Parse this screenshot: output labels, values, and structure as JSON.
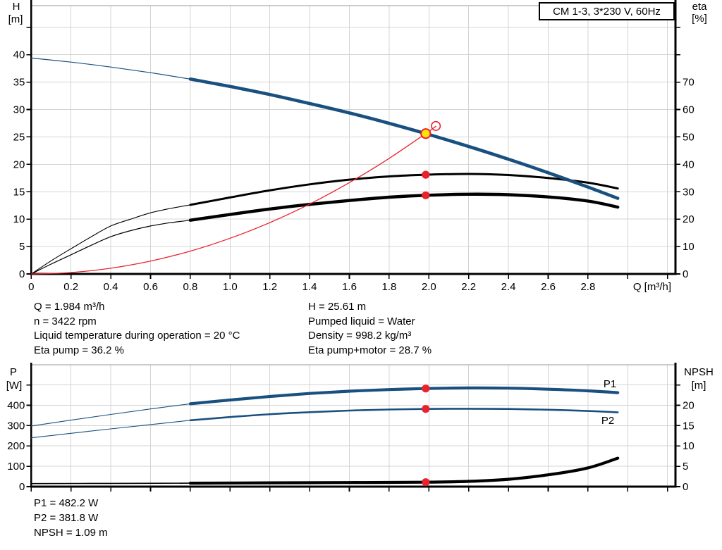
{
  "title_box": {
    "label": "CM 1-3, 3*230 V, 60Hz"
  },
  "colors": {
    "blue": "#1a5080",
    "red": "#e8232e",
    "yellow": "#ffe10a",
    "black": "#000000",
    "grid": "#d4d4d4",
    "axis": "#000000"
  },
  "operating_point_info": {
    "left": [
      "Q = 1.984 m³/h",
      "n = 3422 rpm",
      "Liquid temperature during operation = 20 °C",
      "Eta pump = 36.2 %"
    ],
    "right": [
      "H = 25.61 m",
      "Pumped liquid = Water",
      "Density = 998.2 kg/m³",
      "Eta pump+motor = 28.7 %"
    ]
  },
  "power_info": [
    "P1 = 482.2 W",
    "P2 = 381.8 W",
    "NPSH = 1.09 m"
  ],
  "chart_data": [
    {
      "id": "hq-eta-chart",
      "type": "line",
      "title": "Pump head and efficiency vs flow",
      "x": {
        "label": "Q [m³/h]",
        "min": 0,
        "max": 3.24,
        "ticks": [
          0,
          0.2,
          0.4,
          0.6,
          0.8,
          1,
          1.2,
          1.4,
          1.6,
          1.8,
          2,
          2.2,
          2.4,
          2.6,
          2.8,
          3,
          3.2
        ],
        "tick_labels": [
          "0",
          "0.2",
          "0.4",
          "0.6",
          "0.8",
          "1.0",
          "1.2",
          "1.4",
          "1.6",
          "1.8",
          "2.0",
          "2.2",
          "2.4",
          "2.6",
          "2.8",
          "",
          ""
        ],
        "px0": 44.3,
        "ppu": 282,
        "axis_y": 389,
        "plot_top": 8,
        "plot_right": 958,
        "axis_top": 0,
        "tick_label_y": 412
      },
      "left_axis": {
        "label": "H [m]",
        "min": 0,
        "max": 49,
        "ticks": [
          0,
          5,
          10,
          15,
          20,
          25,
          30,
          35,
          40,
          45
        ],
        "tick_labels": [
          "0",
          "5",
          "10",
          "15",
          "20",
          "25",
          "30",
          "35",
          "40",
          ""
        ],
        "ppu": 7.7825
      },
      "right_axis": {
        "label": "eta [%]",
        "min": 0,
        "max": 98,
        "ticks": [
          0,
          10,
          20,
          30,
          40,
          50,
          60,
          70,
          80,
          90
        ],
        "tick_labels": [
          "0",
          "10",
          "20",
          "30",
          "40",
          "50",
          "60",
          "70",
          "",
          ""
        ],
        "ppu": 3.8913
      },
      "titles": [
        {
          "text": "H",
          "x": 23,
          "y": 14
        },
        {
          "text": "[m]",
          "x": 22,
          "y": 32
        },
        {
          "text": "eta",
          "x": 992,
          "y": 14
        },
        {
          "text": "[%]",
          "x": 992,
          "y": 31
        },
        {
          "text": "Q [m³/h]",
          "x": 952,
          "y": 412,
          "anchor": "end"
        }
      ],
      "series": [
        {
          "name": "eta-pump-motor-curve-thin",
          "axis": "right",
          "color": "black",
          "width": 1.2,
          "points": [
            [
              0,
              0
            ],
            [
              0.1,
              3.6
            ],
            [
              0.2,
              7.0
            ],
            [
              0.3,
              10.4
            ],
            [
              0.4,
              13.6
            ],
            [
              0.5,
              15.8
            ],
            [
              0.6,
              17.5
            ],
            [
              0.7,
              18.7
            ],
            [
              0.8,
              19.6
            ]
          ]
        },
        {
          "name": "eta-pump-motor-curve",
          "axis": "right",
          "color": "black",
          "width": 4.4,
          "points": [
            [
              0.8,
              19.6
            ],
            [
              1.0,
              21.7
            ],
            [
              1.2,
              23.7
            ],
            [
              1.4,
              25.4
            ],
            [
              1.6,
              26.8
            ],
            [
              1.8,
              28.0
            ],
            [
              1.984,
              28.7
            ],
            [
              2.2,
              29.1
            ],
            [
              2.4,
              28.9
            ],
            [
              2.6,
              28.1
            ],
            [
              2.8,
              26.6
            ],
            [
              2.95,
              24.4
            ]
          ]
        },
        {
          "name": "eta-pump-curve-thin",
          "axis": "right",
          "color": "black",
          "width": 1.1,
          "points": [
            [
              0,
              0
            ],
            [
              0.1,
              4.8
            ],
            [
              0.2,
              9.2
            ],
            [
              0.3,
              13.5
            ],
            [
              0.4,
              17.5
            ],
            [
              0.5,
              20.0
            ],
            [
              0.6,
              22.3
            ],
            [
              0.7,
              23.9
            ],
            [
              0.8,
              25.2
            ]
          ]
        },
        {
          "name": "eta-pump-curve",
          "axis": "right",
          "color": "black",
          "width": 3,
          "points": [
            [
              0.8,
              25.2
            ],
            [
              1.0,
              27.9
            ],
            [
              1.2,
              30.5
            ],
            [
              1.4,
              32.7
            ],
            [
              1.6,
              34.4
            ],
            [
              1.8,
              35.6
            ],
            [
              1.984,
              36.2
            ],
            [
              2.2,
              36.5
            ],
            [
              2.4,
              36.1
            ],
            [
              2.6,
              35.0
            ],
            [
              2.8,
              33.3
            ],
            [
              2.95,
              31.2
            ]
          ]
        },
        {
          "name": "h-curve-thin",
          "axis": "left",
          "color": "blue",
          "width": 1.2,
          "points": [
            [
              0,
              39.4
            ],
            [
              0.2,
              38.65
            ],
            [
              0.4,
              37.75
            ],
            [
              0.6,
              36.72
            ],
            [
              0.8,
              35.55
            ]
          ]
        },
        {
          "name": "h-curve",
          "axis": "left",
          "color": "blue",
          "width": 4.6,
          "points": [
            [
              0.8,
              35.55
            ],
            [
              1.0,
              34.2
            ],
            [
              1.2,
              32.74
            ],
            [
              1.4,
              31.1
            ],
            [
              1.6,
              29.38
            ],
            [
              1.8,
              27.48
            ],
            [
              1.984,
              25.61
            ],
            [
              2.2,
              23.26
            ],
            [
              2.4,
              20.93
            ],
            [
              2.6,
              18.46
            ],
            [
              2.8,
              15.85
            ],
            [
              2.95,
              13.8
            ]
          ]
        },
        {
          "name": "system-curve",
          "axis": "left",
          "color": "red",
          "width": 1.3,
          "points": [
            [
              0,
              0
            ],
            [
              0.2,
              0.26
            ],
            [
              0.4,
              1.04
            ],
            [
              0.6,
              2.34
            ],
            [
              0.8,
              4.16
            ],
            [
              1.0,
              6.51
            ],
            [
              1.2,
              9.37
            ],
            [
              1.4,
              12.75
            ],
            [
              1.6,
              16.66
            ],
            [
              1.8,
              21.08
            ],
            [
              1.984,
              25.61
            ],
            [
              2.035,
              26.95
            ]
          ]
        }
      ],
      "annotations": [],
      "markers": [
        {
          "name": "eta-pump-duty-dot",
          "q": 1.984,
          "v": 36.2,
          "axis": "right",
          "r": 5.6,
          "fill": "red"
        },
        {
          "name": "eta-pump-motor-duty-dot",
          "q": 1.984,
          "v": 28.7,
          "axis": "right",
          "r": 5.6,
          "fill": "red"
        },
        {
          "name": "requested-duty-ring",
          "q": 2.035,
          "v": 27.0,
          "axis": "left",
          "r": 6.2,
          "stroke": "red",
          "sw": 1.6
        },
        {
          "name": "duty-point-marker",
          "q": 1.984,
          "v": 25.61,
          "axis": "left",
          "r": 6.6,
          "fill": "yellow",
          "stroke": "red",
          "sw": 2
        }
      ]
    },
    {
      "id": "power-npsh-chart",
      "type": "line",
      "title": "Power and NPSH vs flow",
      "x": {
        "label": "",
        "min": 0,
        "max": 3.24,
        "ticks": [
          0,
          0.2,
          0.4,
          0.6,
          0.8,
          1,
          1.2,
          1.4,
          1.6,
          1.8,
          2,
          2.2,
          2.4,
          2.6,
          2.8,
          3,
          3.2
        ],
        "tick_labels": [],
        "px0": 44.3,
        "ppu": 282,
        "axis_y": 691,
        "plot_top": 518,
        "plot_right": 958,
        "axis_top": 515,
        "tick_label_y": 714
      },
      "left_axis": {
        "label": "P [W]",
        "min": 0,
        "max": 600,
        "ticks": [
          0,
          100,
          200,
          300,
          400,
          500
        ],
        "tick_labels": [
          "0",
          "100",
          "200",
          "300",
          "400",
          ""
        ],
        "ppu": 0.28883
      },
      "right_axis": {
        "label": "NPSH [m]",
        "min": 0,
        "max": 30,
        "ticks": [
          0,
          5,
          10,
          15,
          20,
          25
        ],
        "tick_labels": [
          "0",
          "5",
          "10",
          "15",
          "20",
          ""
        ],
        "ppu": 5.7767
      },
      "titles": [
        {
          "text": "P",
          "x": 19,
          "y": 533
        },
        {
          "text": "[W]",
          "x": 20,
          "y": 552
        },
        {
          "text": "NPSH",
          "x": 991,
          "y": 533
        },
        {
          "text": "[m]",
          "x": 991,
          "y": 552
        }
      ],
      "series": [
        {
          "name": "p1-curve-thin",
          "axis": "left",
          "color": "blue",
          "width": 1.1,
          "points": [
            [
              0,
              298
            ],
            [
              0.2,
              327
            ],
            [
              0.4,
              355
            ],
            [
              0.6,
              382
            ],
            [
              0.8,
              407
            ]
          ]
        },
        {
          "name": "p1-curve",
          "axis": "left",
          "color": "blue",
          "width": 4.2,
          "points": [
            [
              0.8,
              407
            ],
            [
              1.0,
              426
            ],
            [
              1.2,
              443
            ],
            [
              1.4,
              458
            ],
            [
              1.6,
              469
            ],
            [
              1.8,
              477
            ],
            [
              1.984,
              482.2
            ],
            [
              2.2,
              485
            ],
            [
              2.4,
              484
            ],
            [
              2.6,
              479
            ],
            [
              2.8,
              471
            ],
            [
              2.95,
              462
            ]
          ]
        },
        {
          "name": "p2-curve-thin",
          "axis": "left",
          "color": "blue",
          "width": 1.1,
          "points": [
            [
              0,
              240
            ],
            [
              0.2,
              262
            ],
            [
              0.4,
              284
            ],
            [
              0.6,
              305
            ],
            [
              0.8,
              326
            ]
          ]
        },
        {
          "name": "p2-curve",
          "axis": "left",
          "color": "blue",
          "width": 2.6,
          "points": [
            [
              0.8,
              326
            ],
            [
              1.0,
              342
            ],
            [
              1.2,
              356
            ],
            [
              1.4,
              366
            ],
            [
              1.6,
              374
            ],
            [
              1.8,
              379
            ],
            [
              1.984,
              381.8
            ],
            [
              2.2,
              383
            ],
            [
              2.4,
              382
            ],
            [
              2.6,
              378
            ],
            [
              2.8,
              372
            ],
            [
              2.95,
              365
            ]
          ]
        },
        {
          "name": "npsh-curve-thin",
          "axis": "right",
          "color": "black",
          "width": 1.6,
          "points": [
            [
              0,
              0.75
            ],
            [
              0.4,
              0.8
            ],
            [
              0.8,
              0.85
            ]
          ]
        },
        {
          "name": "npsh-curve",
          "axis": "right",
          "color": "black",
          "width": 4.2,
          "points": [
            [
              0.8,
              0.85
            ],
            [
              1.2,
              0.93
            ],
            [
              1.6,
              1.0
            ],
            [
              1.984,
              1.09
            ],
            [
              2.2,
              1.3
            ],
            [
              2.4,
              1.8
            ],
            [
              2.6,
              2.9
            ],
            [
              2.8,
              4.6
            ],
            [
              2.95,
              7.0
            ]
          ]
        }
      ],
      "annotations": [
        {
          "name": "p1-curve-label",
          "text": "P1",
          "x": 865,
          "y": 550,
          "color": "blue"
        },
        {
          "name": "p2-curve-label",
          "text": "P2",
          "x": 862,
          "y": 602,
          "color": "blue"
        }
      ],
      "markers": [
        {
          "name": "p1-duty-dot",
          "q": 1.984,
          "v": 482.2,
          "axis": "left",
          "r": 5.6,
          "fill": "red"
        },
        {
          "name": "p2-duty-dot",
          "q": 1.984,
          "v": 381.8,
          "axis": "left",
          "r": 5.6,
          "fill": "red"
        },
        {
          "name": "npsh-duty-dot",
          "q": 1.984,
          "v": 1.09,
          "axis": "right",
          "r": 5.6,
          "fill": "red"
        }
      ]
    }
  ]
}
